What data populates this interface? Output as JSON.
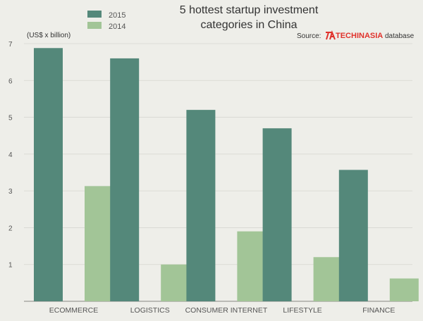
{
  "chart_data": {
    "type": "bar",
    "title": [
      "5 hottest startup investment",
      "categories in China"
    ],
    "ylabel": "(US$ x billion)",
    "source_prefix": "Source:",
    "source_brand": "TECHINASIA",
    "source_suffix": "database",
    "categories": [
      "ECOMMERCE",
      "LOGISTICS",
      "CONSUMER INTERNET",
      "LIFESTYLE",
      "FINANCE"
    ],
    "series": [
      {
        "name": "2015",
        "color": "#54887a",
        "values": [
          6.88,
          6.6,
          5.2,
          4.7,
          3.57
        ]
      },
      {
        "name": "2014",
        "color": "#a2c597",
        "values": [
          3.13,
          1.0,
          1.9,
          1.2,
          0.62
        ]
      }
    ],
    "ylim": [
      0,
      7
    ],
    "yticks": [
      0,
      1,
      2,
      3,
      4,
      5,
      6,
      7
    ],
    "legend_position": "top-left",
    "grid": true
  }
}
